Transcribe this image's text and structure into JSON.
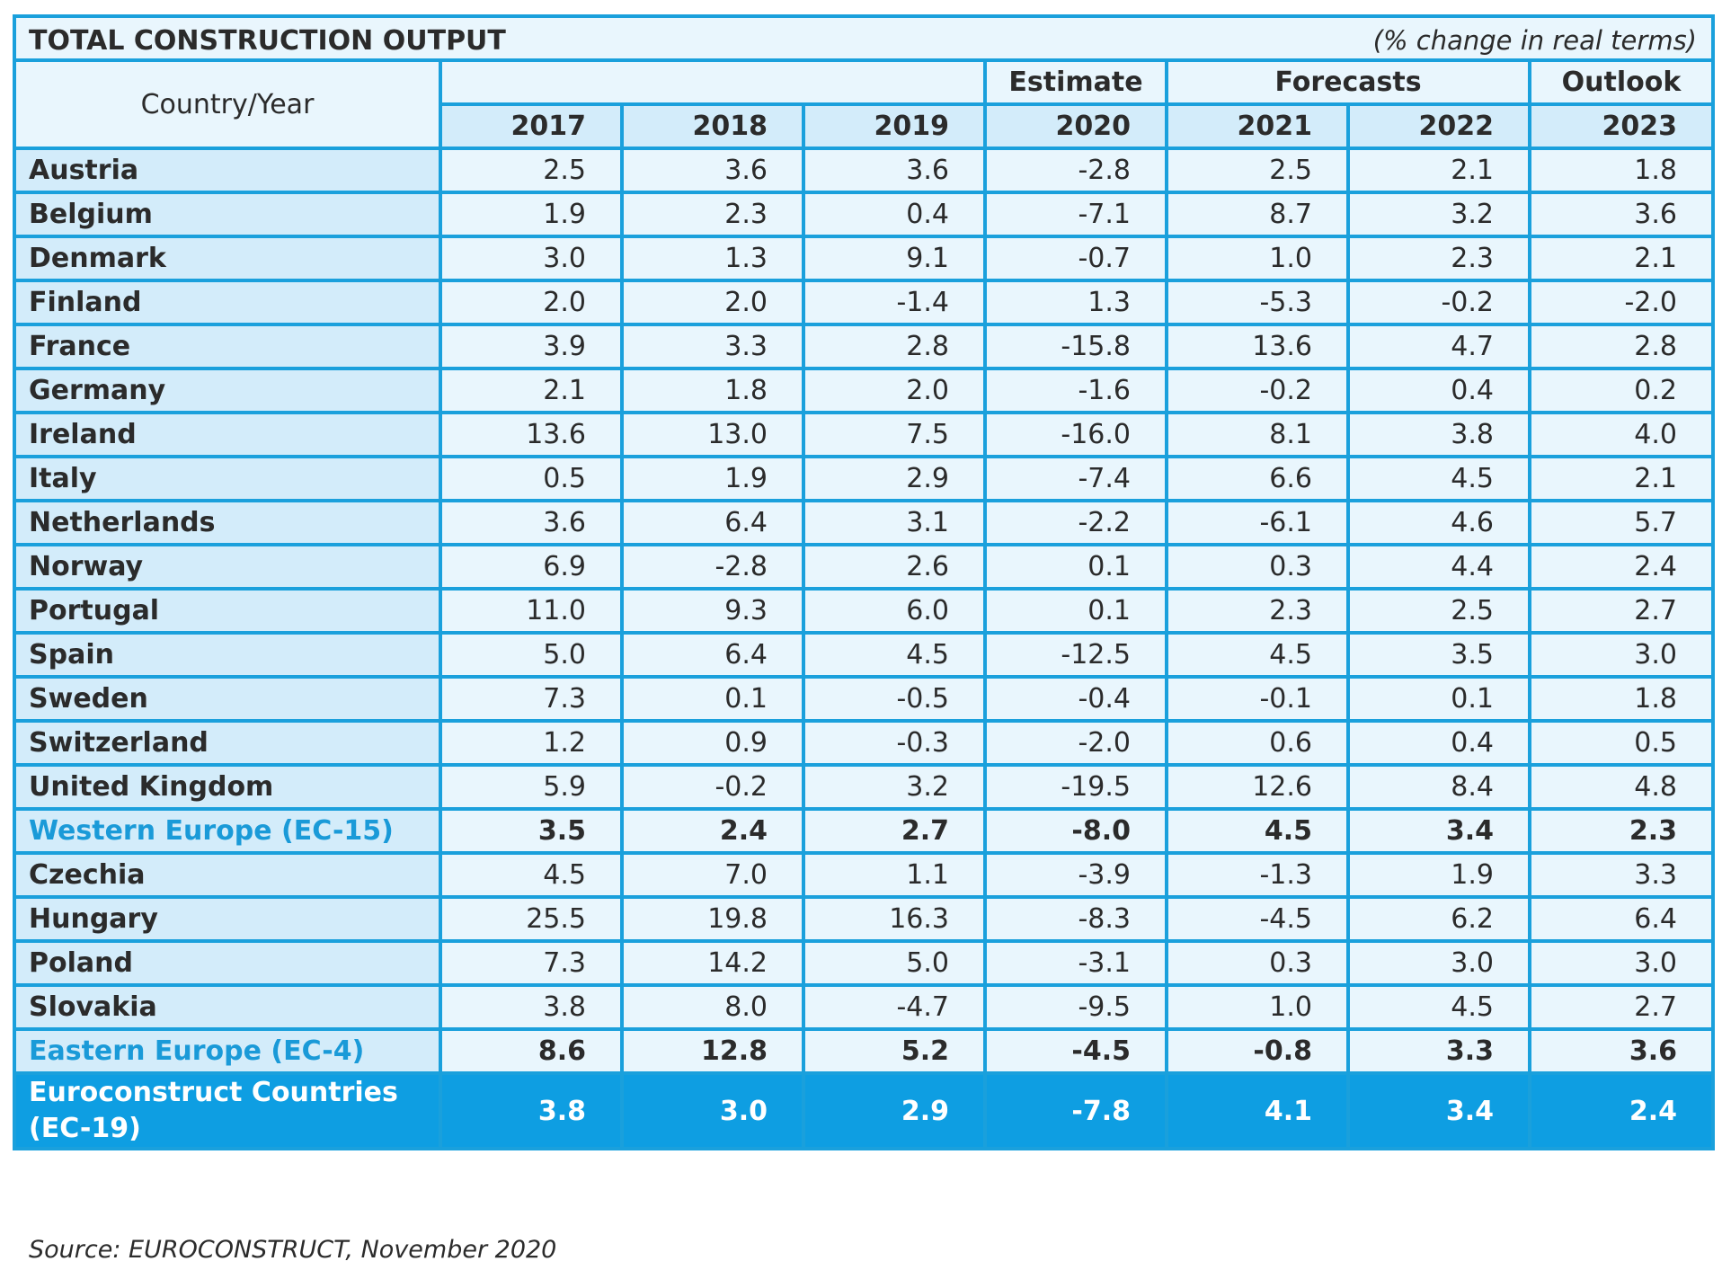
{
  "title": "TOTAL CONSTRUCTION OUTPUT",
  "unit_note": "(% change in real terms)",
  "header": {
    "country_label": "Country/Year",
    "groups": [
      "",
      "Estimate",
      "Forecasts",
      "Outlook"
    ],
    "years": [
      "2017",
      "2018",
      "2019",
      "2020",
      "2021",
      "2022",
      "2023"
    ]
  },
  "rows": [
    {
      "name": "Austria",
      "values": [
        "2.5",
        "3.6",
        "3.6",
        "-2.8",
        "2.5",
        "2.1",
        "1.8"
      ]
    },
    {
      "name": "Belgium",
      "values": [
        "1.9",
        "2.3",
        "0.4",
        "-7.1",
        "8.7",
        "3.2",
        "3.6"
      ]
    },
    {
      "name": "Denmark",
      "values": [
        "3.0",
        "1.3",
        "9.1",
        "-0.7",
        "1.0",
        "2.3",
        "2.1"
      ]
    },
    {
      "name": "Finland",
      "values": [
        "2.0",
        "2.0",
        "-1.4",
        "1.3",
        "-5.3",
        "-0.2",
        "-2.0"
      ]
    },
    {
      "name": "France",
      "values": [
        "3.9",
        "3.3",
        "2.8",
        "-15.8",
        "13.6",
        "4.7",
        "2.8"
      ]
    },
    {
      "name": "Germany",
      "values": [
        "2.1",
        "1.8",
        "2.0",
        "-1.6",
        "-0.2",
        "0.4",
        "0.2"
      ]
    },
    {
      "name": "Ireland",
      "values": [
        "13.6",
        "13.0",
        "7.5",
        "-16.0",
        "8.1",
        "3.8",
        "4.0"
      ]
    },
    {
      "name": "Italy",
      "values": [
        "0.5",
        "1.9",
        "2.9",
        "-7.4",
        "6.6",
        "4.5",
        "2.1"
      ]
    },
    {
      "name": "Netherlands",
      "values": [
        "3.6",
        "6.4",
        "3.1",
        "-2.2",
        "-6.1",
        "4.6",
        "5.7"
      ]
    },
    {
      "name": "Norway",
      "values": [
        "6.9",
        "-2.8",
        "2.6",
        "0.1",
        "0.3",
        "4.4",
        "2.4"
      ]
    },
    {
      "name": "Portugal",
      "values": [
        "11.0",
        "9.3",
        "6.0",
        "0.1",
        "2.3",
        "2.5",
        "2.7"
      ]
    },
    {
      "name": "Spain",
      "values": [
        "5.0",
        "6.4",
        "4.5",
        "-12.5",
        "4.5",
        "3.5",
        "3.0"
      ]
    },
    {
      "name": "Sweden",
      "values": [
        "7.3",
        "0.1",
        "-0.5",
        "-0.4",
        "-0.1",
        "0.1",
        "1.8"
      ]
    },
    {
      "name": "Switzerland",
      "values": [
        "1.2",
        "0.9",
        "-0.3",
        "-2.0",
        "0.6",
        "0.4",
        "0.5"
      ]
    },
    {
      "name": "United Kingdom",
      "values": [
        "5.9",
        "-0.2",
        "3.2",
        "-19.5",
        "12.6",
        "8.4",
        "4.8"
      ]
    },
    {
      "name": "Western Europe (EC-15)",
      "values": [
        "3.5",
        "2.4",
        "2.7",
        "-8.0",
        "4.5",
        "3.4",
        "2.3"
      ]
    },
    {
      "name": "Czechia",
      "values": [
        "4.5",
        "7.0",
        "1.1",
        "-3.9",
        "-1.3",
        "1.9",
        "3.3"
      ]
    },
    {
      "name": "Hungary",
      "values": [
        "25.5",
        "19.8",
        "16.3",
        "-8.3",
        "-4.5",
        "6.2",
        "6.4"
      ]
    },
    {
      "name": "Poland",
      "values": [
        "7.3",
        "14.2",
        "5.0",
        "-3.1",
        "0.3",
        "3.0",
        "3.0"
      ]
    },
    {
      "name": "Slovakia",
      "values": [
        "3.8",
        "8.0",
        "-4.7",
        "-9.5",
        "1.0",
        "4.5",
        "2.7"
      ]
    },
    {
      "name": "Eastern Europe (EC-4)",
      "values": [
        "8.6",
        "12.8",
        "5.2",
        "-4.5",
        "-0.8",
        "3.3",
        "3.6"
      ]
    },
    {
      "name": "Euroconstruct Countries (EC-19)",
      "values": [
        "3.8",
        "3.0",
        "2.9",
        "-7.8",
        "4.1",
        "3.4",
        "2.4"
      ]
    }
  ],
  "source": "Source: EUROCONSTRUCT, November 2020",
  "colors": {
    "accent": "#1aa0dc",
    "total_row": "#0e9ee2",
    "light_cell": "#e9f6fd",
    "name_cell": "#d3ecfa"
  }
}
